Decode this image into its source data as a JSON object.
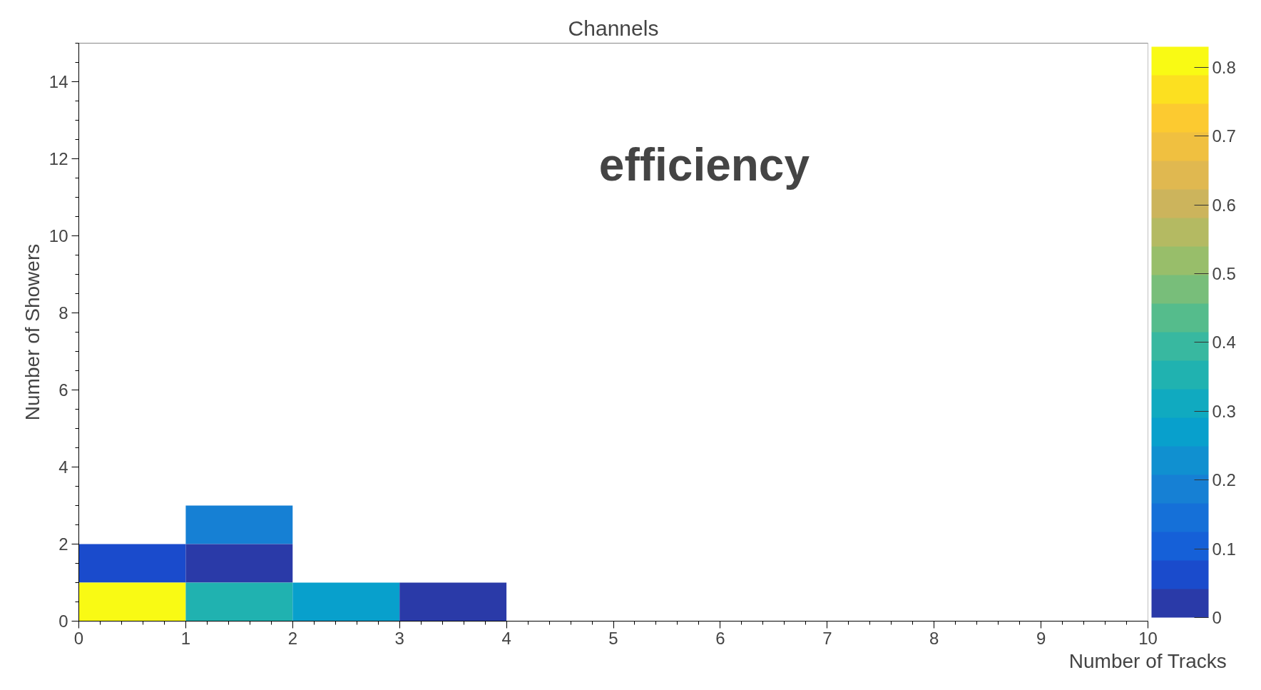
{
  "chart_data": {
    "type": "heatmap",
    "title": "Channels",
    "xlabel": "Number of Tracks",
    "ylabel": "Number of Showers",
    "annotations": [
      "efficiency"
    ],
    "x": [
      0.5,
      1.5,
      2.5,
      3.5
    ],
    "y": [
      2.5,
      1.5,
      0.5
    ],
    "cells": [
      [
        null,
        0.2,
        null,
        null
      ],
      [
        0.07,
        0.0,
        null,
        null
      ],
      [
        0.83,
        0.36,
        0.25,
        0.0
      ]
    ],
    "xlim": [
      0,
      10
    ],
    "xticks": [
      0,
      1,
      2,
      3,
      4,
      5,
      6,
      7,
      8,
      9,
      10
    ],
    "ylim": [
      0,
      15
    ],
    "yticks": [
      0,
      2,
      4,
      6,
      8,
      10,
      12,
      14
    ],
    "clim": [
      0,
      0.83
    ],
    "cticks": [
      0,
      0.1,
      0.2,
      0.3,
      0.4,
      0.5,
      0.6,
      0.7,
      0.8
    ],
    "grid": false
  }
}
